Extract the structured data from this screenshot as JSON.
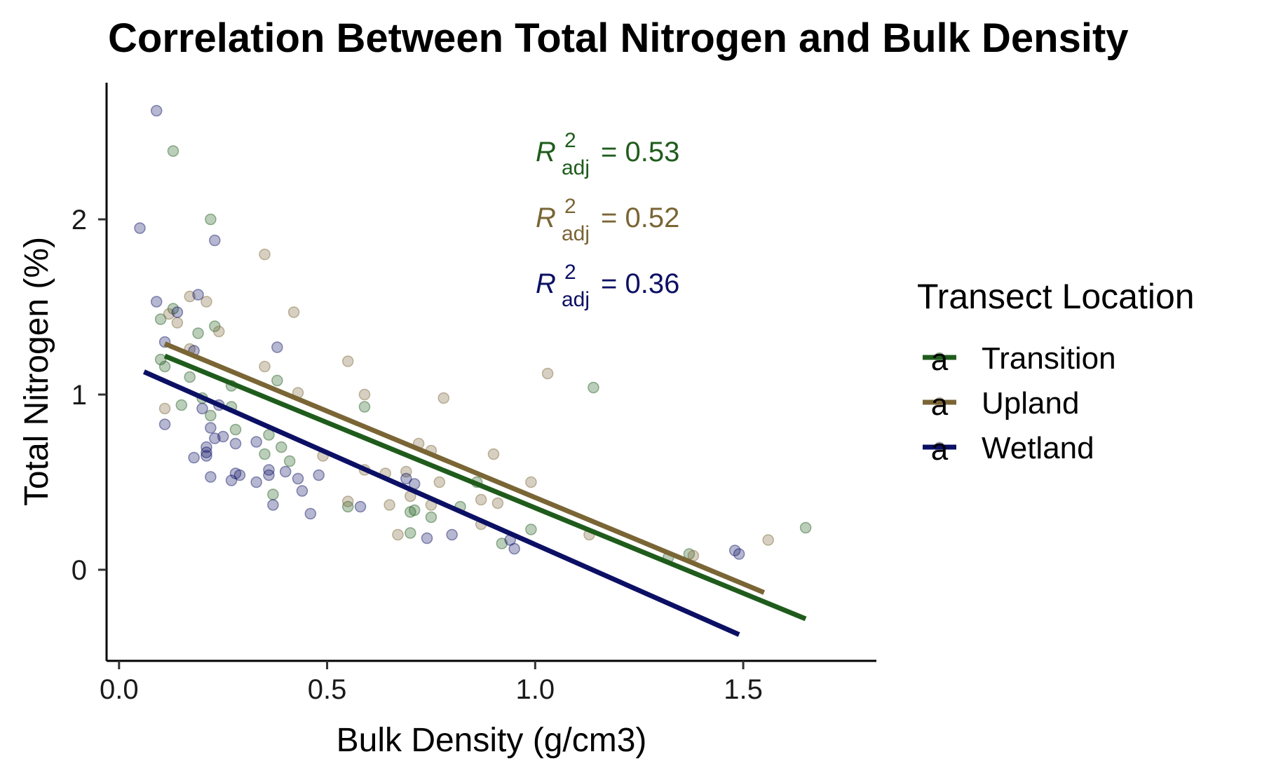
{
  "chart_data": {
    "type": "scatter",
    "title": "Correlation Between Total Nitrogen and Bulk Density",
    "xlabel": "Bulk Density (g/cm3)",
    "ylabel": "Total Nitrogen (%)",
    "xlim": [
      -0.03,
      1.82
    ],
    "ylim": [
      -0.52,
      2.78
    ],
    "xticks": [
      0.0,
      0.5,
      1.0,
      1.5
    ],
    "xtick_labels": [
      "0.0",
      "0.5",
      "1.0",
      "1.5"
    ],
    "yticks": [
      0,
      1,
      2
    ],
    "ytick_labels": [
      "0",
      "1",
      "2"
    ],
    "grid": false,
    "legend": {
      "title": "Transect Location",
      "placement": "right",
      "key_glyph": "a"
    },
    "series": [
      {
        "name": "Transition",
        "color": "#1f5c1c",
        "fit": {
          "x": [
            0.11,
            1.65
          ],
          "y": [
            1.22,
            -0.28
          ]
        },
        "r2": {
          "label": "R",
          "sub": "adj",
          "sup": "2",
          "value": "= 0.53"
        },
        "points": [
          [
            0.1,
            1.43
          ],
          [
            0.1,
            1.2
          ],
          [
            0.11,
            1.16
          ],
          [
            0.13,
            2.39
          ],
          [
            0.13,
            1.49
          ],
          [
            0.15,
            0.94
          ],
          [
            0.17,
            1.1
          ],
          [
            0.19,
            1.35
          ],
          [
            0.2,
            0.98
          ],
          [
            0.22,
            0.88
          ],
          [
            0.22,
            2.0
          ],
          [
            0.23,
            1.39
          ],
          [
            0.27,
            1.05
          ],
          [
            0.27,
            0.93
          ],
          [
            0.28,
            0.8
          ],
          [
            0.35,
            0.66
          ],
          [
            0.36,
            0.77
          ],
          [
            0.37,
            0.43
          ],
          [
            0.38,
            1.08
          ],
          [
            0.39,
            0.7
          ],
          [
            0.41,
            0.62
          ],
          [
            0.55,
            0.36
          ],
          [
            0.59,
            0.93
          ],
          [
            0.7,
            0.21
          ],
          [
            0.7,
            0.33
          ],
          [
            0.71,
            0.34
          ],
          [
            0.75,
            0.3
          ],
          [
            0.82,
            0.36
          ],
          [
            0.86,
            0.5
          ],
          [
            0.92,
            0.15
          ],
          [
            0.99,
            0.23
          ],
          [
            1.14,
            1.04
          ],
          [
            1.32,
            0.07
          ],
          [
            1.37,
            0.09
          ],
          [
            1.65,
            0.24
          ]
        ]
      },
      {
        "name": "Upland",
        "color": "#7a6535",
        "fit": {
          "x": [
            0.11,
            1.55
          ],
          "y": [
            1.29,
            -0.13
          ]
        },
        "r2": {
          "label": "R",
          "sub": "adj",
          "sup": "2",
          "value": "= 0.52"
        },
        "points": [
          [
            0.11,
            0.92
          ],
          [
            0.12,
            1.46
          ],
          [
            0.14,
            1.41
          ],
          [
            0.17,
            1.56
          ],
          [
            0.17,
            1.26
          ],
          [
            0.21,
            1.53
          ],
          [
            0.24,
            1.36
          ],
          [
            0.35,
            1.8
          ],
          [
            0.35,
            1.16
          ],
          [
            0.42,
            1.47
          ],
          [
            0.43,
            1.01
          ],
          [
            0.49,
            0.65
          ],
          [
            0.55,
            1.19
          ],
          [
            0.55,
            0.39
          ],
          [
            0.59,
            0.57
          ],
          [
            0.59,
            1.0
          ],
          [
            0.64,
            0.55
          ],
          [
            0.65,
            0.37
          ],
          [
            0.67,
            0.2
          ],
          [
            0.69,
            0.56
          ],
          [
            0.7,
            0.42
          ],
          [
            0.72,
            0.72
          ],
          [
            0.75,
            0.68
          ],
          [
            0.75,
            0.37
          ],
          [
            0.77,
            0.5
          ],
          [
            0.78,
            0.98
          ],
          [
            0.87,
            0.4
          ],
          [
            0.87,
            0.26
          ],
          [
            0.9,
            0.66
          ],
          [
            0.91,
            0.38
          ],
          [
            0.99,
            0.5
          ],
          [
            1.03,
            1.12
          ],
          [
            1.13,
            0.2
          ],
          [
            1.38,
            0.08
          ],
          [
            1.56,
            0.17
          ]
        ]
      },
      {
        "name": "Wetland",
        "color": "#0c1064",
        "fit": {
          "x": [
            0.06,
            1.49
          ],
          "y": [
            1.13,
            -0.37
          ]
        },
        "r2": {
          "label": "R",
          "sub": "adj",
          "sup": "2",
          "value": "= 0.36"
        },
        "points": [
          [
            0.05,
            1.95
          ],
          [
            0.09,
            2.62
          ],
          [
            0.09,
            1.53
          ],
          [
            0.11,
            0.83
          ],
          [
            0.11,
            1.3
          ],
          [
            0.14,
            1.47
          ],
          [
            0.18,
            0.64
          ],
          [
            0.18,
            1.25
          ],
          [
            0.19,
            1.57
          ],
          [
            0.2,
            0.92
          ],
          [
            0.21,
            0.7
          ],
          [
            0.21,
            0.65
          ],
          [
            0.21,
            0.67
          ],
          [
            0.22,
            0.53
          ],
          [
            0.22,
            0.81
          ],
          [
            0.23,
            0.75
          ],
          [
            0.23,
            1.88
          ],
          [
            0.24,
            0.94
          ],
          [
            0.25,
            0.76
          ],
          [
            0.27,
            0.51
          ],
          [
            0.28,
            0.55
          ],
          [
            0.28,
            0.72
          ],
          [
            0.29,
            0.54
          ],
          [
            0.33,
            0.5
          ],
          [
            0.33,
            0.73
          ],
          [
            0.36,
            0.57
          ],
          [
            0.36,
            0.54
          ],
          [
            0.37,
            0.37
          ],
          [
            0.38,
            1.27
          ],
          [
            0.4,
            0.56
          ],
          [
            0.43,
            0.52
          ],
          [
            0.44,
            0.45
          ],
          [
            0.46,
            0.32
          ],
          [
            0.48,
            0.54
          ],
          [
            0.58,
            0.36
          ],
          [
            0.69,
            0.52
          ],
          [
            0.71,
            0.49
          ],
          [
            0.74,
            0.18
          ],
          [
            0.8,
            0.2
          ],
          [
            0.94,
            0.17
          ],
          [
            0.95,
            0.12
          ],
          [
            1.48,
            0.11
          ],
          [
            1.49,
            0.09
          ]
        ]
      }
    ]
  }
}
